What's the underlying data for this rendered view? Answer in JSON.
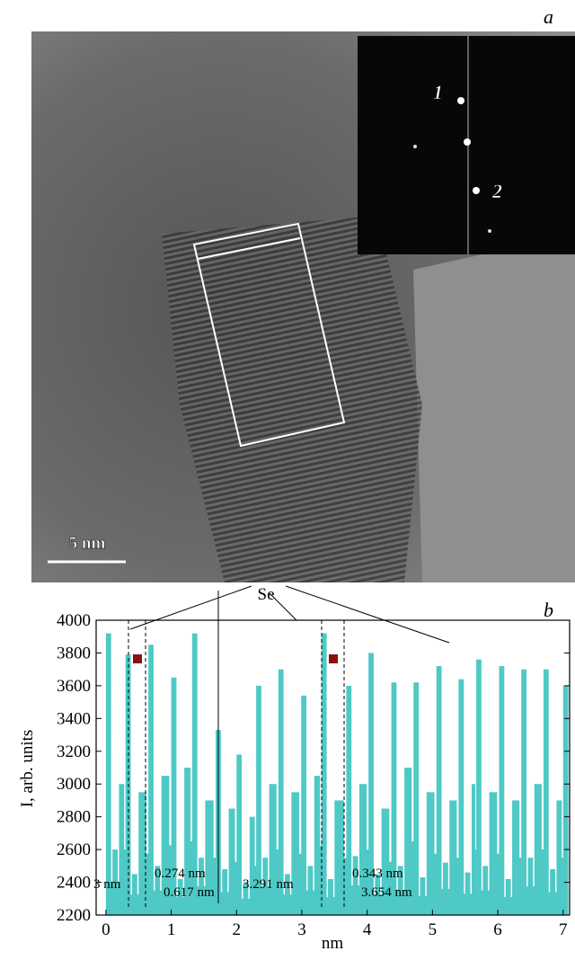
{
  "panel_a": {
    "label": "a",
    "scale_bar": "5 nm",
    "fft_labels": [
      "1",
      "2"
    ]
  },
  "chart_data": {
    "type": "bar",
    "label": "b",
    "x_label": "nm",
    "y_label": "I, arb. units",
    "color": "#4ec9c6",
    "x": [
      0,
      0.1,
      0.2,
      0.3,
      0.4,
      0.5,
      0.65,
      0.75,
      0.85,
      1.0,
      1.1,
      1.2,
      1.32,
      1.42,
      1.52,
      1.68,
      1.78,
      1.88,
      2.0,
      2.1,
      2.2,
      2.3,
      2.4,
      2.5,
      2.64,
      2.74,
      2.84,
      2.99,
      3.09,
      3.19,
      3.3,
      3.4,
      3.5,
      3.68,
      3.78,
      3.88,
      4.02,
      4.12,
      4.22,
      4.37,
      4.47,
      4.57,
      4.71,
      4.81,
      4.91,
      5.06,
      5.16,
      5.26,
      5.4,
      5.5,
      5.6,
      5.67,
      5.77,
      5.87,
      6.02,
      6.12,
      6.22,
      6.36,
      6.46,
      6.56,
      6.7,
      6.8,
      6.9,
      7.0
    ],
    "values": [
      3920,
      2600,
      3000,
      3790,
      2450,
      2950,
      3850,
      2500,
      3050,
      3650,
      2420,
      3100,
      3920,
      2550,
      2900,
      3330,
      2480,
      2850,
      3180,
      2400,
      2800,
      3600,
      2550,
      3000,
      3700,
      2450,
      2950,
      3540,
      2500,
      3050,
      3920,
      2420,
      2900,
      3600,
      2560,
      3000,
      3800,
      2450,
      2850,
      3620,
      2500,
      3100,
      3620,
      2430,
      2950,
      3720,
      2520,
      2900,
      3640,
      2460,
      3000,
      3760,
      2500,
      2950,
      3720,
      2420,
      2900,
      3700,
      2550,
      3000,
      3700,
      2480,
      2900,
      3600
    ],
    "xlim": [
      -0.15,
      7.1
    ],
    "ylim": [
      2200,
      4000
    ],
    "xticks": [
      0,
      1,
      2,
      3,
      4,
      5,
      6,
      7
    ],
    "yticks": [
      2200,
      2400,
      2600,
      2800,
      3000,
      3200,
      3400,
      3600,
      3800,
      4000
    ],
    "annotations": [
      "Se",
      "0.274 nm",
      "0.617 nm",
      "3.291 nm",
      "0.343 nm",
      "3.654 nm",
      "3 nm"
    ]
  }
}
